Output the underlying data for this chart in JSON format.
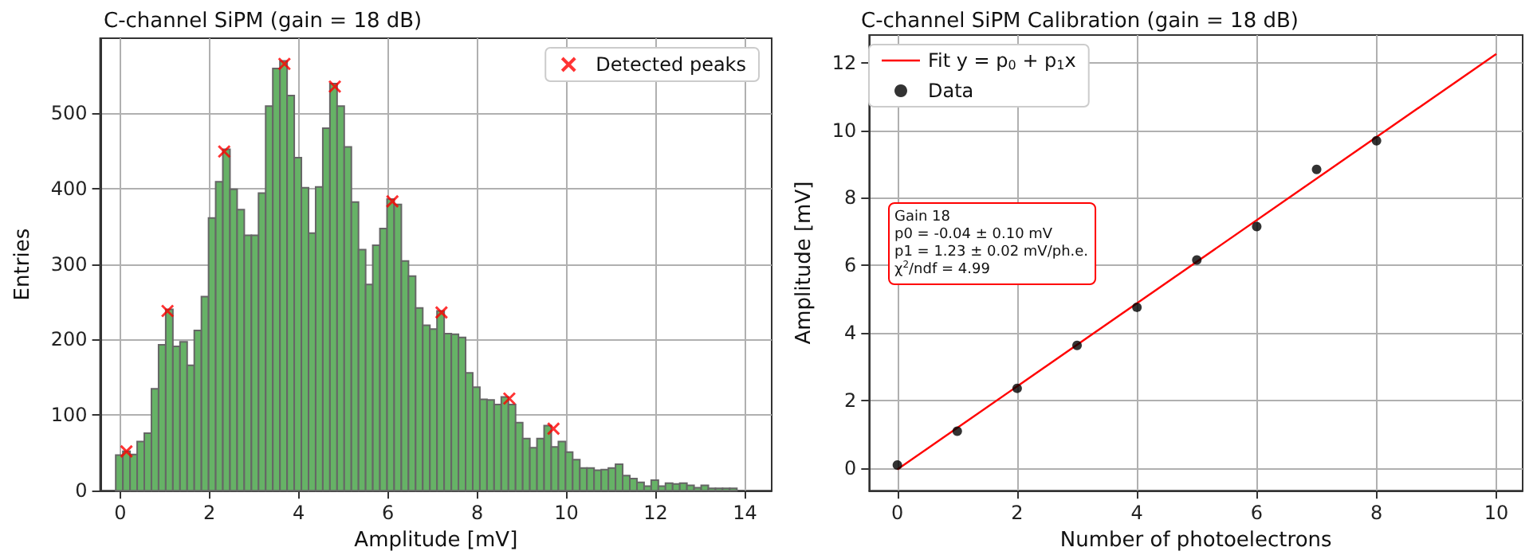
{
  "chart_data": [
    {
      "type": "histogram",
      "title": "C-channel SiPM (gain = 18 dB)",
      "xlabel": "Amplitude [mV]",
      "ylabel": "Entries",
      "bins": [
        -0.1,
        0.06,
        0.22,
        0.38,
        0.54,
        0.7,
        0.86,
        1.02,
        1.18,
        1.34,
        1.5,
        1.66,
        1.82,
        1.98,
        2.14,
        2.3,
        2.46,
        2.62,
        2.78,
        2.94,
        3.1,
        3.26,
        3.42,
        3.58,
        3.74,
        3.9,
        4.06,
        4.22,
        4.38,
        4.54,
        4.7,
        4.86,
        5.02,
        5.18,
        5.34,
        5.5,
        5.66,
        5.82,
        5.98,
        6.14,
        6.3,
        6.46,
        6.62,
        6.78,
        6.94,
        7.1,
        7.26,
        7.42,
        7.58,
        7.74,
        7.9,
        8.06,
        8.22,
        8.38,
        8.54,
        8.7,
        8.86,
        9.02,
        9.18,
        9.34,
        9.5,
        9.66,
        9.82,
        9.98,
        10.14,
        10.3,
        10.46,
        10.62,
        10.78,
        10.94,
        11.1,
        11.26,
        11.42,
        11.58,
        11.74,
        11.9,
        12.06,
        12.22,
        12.38,
        12.54,
        12.7,
        12.86,
        13.02,
        13.18,
        13.34,
        13.5,
        13.66,
        13.82
      ],
      "series": [
        {
          "color": "#66b266",
          "values": [
            47,
            52,
            48,
            65,
            76,
            135,
            193,
            240,
            191,
            197,
            166,
            212,
            257,
            361,
            409,
            452,
            399,
            372,
            338,
            338,
            394,
            509,
            559,
            569,
            523,
            441,
            401,
            341,
            402,
            480,
            539,
            509,
            455,
            382,
            319,
            273,
            325,
            347,
            386,
            379,
            304,
            284,
            242,
            219,
            214,
            238,
            208,
            207,
            203,
            156,
            137,
            121,
            120,
            114,
            124,
            114,
            90,
            69,
            57,
            69,
            86,
            58,
            65,
            51,
            41,
            30,
            30,
            27,
            28,
            30,
            35,
            20,
            16,
            11,
            6,
            14,
            6,
            10,
            9,
            10,
            7,
            4,
            7,
            3,
            3,
            3,
            3
          ]
        },
        {
          "type": "scatter",
          "name": "Detected peaks",
          "color": "#ff0000",
          "marker": "cross",
          "x": [
            0.14,
            1.06,
            2.33,
            3.68,
            4.81,
            6.1,
            7.2,
            8.72,
            9.71
          ],
          "values": [
            52,
            238,
            449,
            565,
            535,
            383,
            236,
            122,
            82
          ]
        }
      ],
      "xlim": [
        -0.45,
        14.6
      ],
      "xticks": [
        0,
        2,
        4,
        6,
        8,
        10,
        12,
        14
      ],
      "ylim": [
        0,
        599
      ],
      "yticks": [
        0,
        100,
        200,
        300,
        400,
        500
      ],
      "grid": true,
      "legend": "top right"
    },
    {
      "type": "scatter",
      "title": "C-channel SiPM Calibration (gain = 18 dB)",
      "xlabel": "Number of photoelectrons",
      "ylabel": "Amplitude [mV]",
      "series": [
        {
          "type": "line",
          "name": "Fit y = p$_{0}$ + p$_{1}$x",
          "color": "#ff0000",
          "marker": "none",
          "x": [
            0,
            10
          ],
          "values": [
            -0.04,
            12.26
          ]
        },
        {
          "name": "Data",
          "color": "#000000",
          "marker": "circle",
          "x": [
            0,
            1,
            2,
            3,
            4,
            5,
            6,
            7,
            8
          ],
          "values": [
            0.09,
            1.09,
            2.36,
            3.63,
            4.76,
            6.16,
            7.15,
            8.84,
            9.69
          ]
        }
      ],
      "annotations": [
        "Gain 18",
        "p0 = -0.04 ± 0.10 mV",
        "p1 = 1.23 ± 0.02 mV/ph.e.",
        "χ$^{2}$/ndf = 4.99"
      ],
      "xlim": [
        -0.47,
        10.44
      ],
      "xticks": [
        0,
        2,
        4,
        6,
        8,
        10
      ],
      "ylim": [
        -0.67,
        12.82
      ],
      "yticks": [
        0,
        2,
        4,
        6,
        8,
        10,
        12
      ],
      "grid": true,
      "legend": "top left"
    }
  ]
}
